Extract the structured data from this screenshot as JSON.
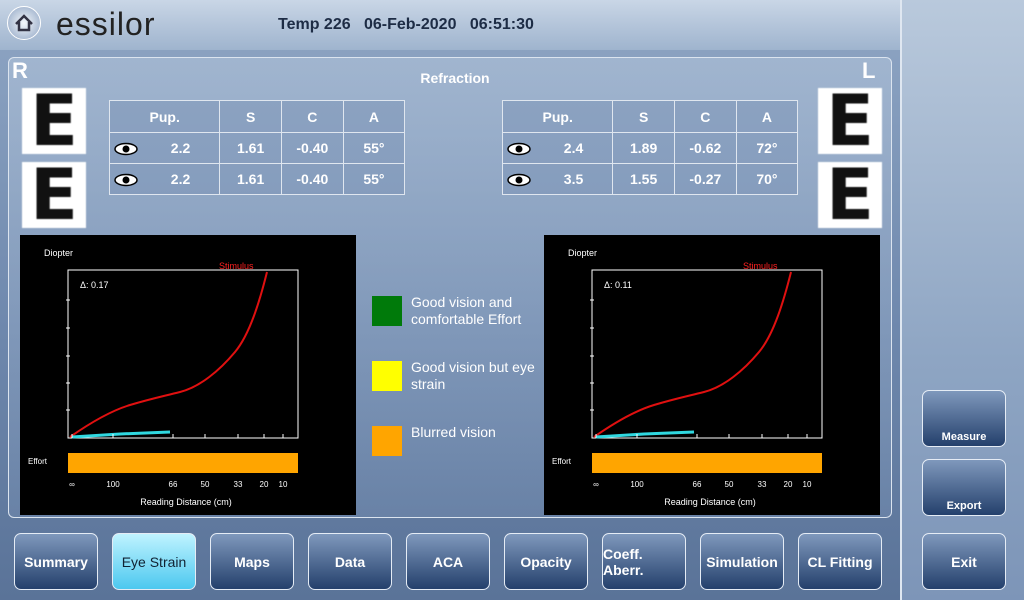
{
  "header": {
    "brand": "essilor",
    "patient": "Temp 226",
    "date": "06-Feb-2020",
    "time": "06:51:30"
  },
  "panel": {
    "title": "Refraction",
    "right_eye": "R",
    "left_eye": "L"
  },
  "tables": [
    {
      "columns": [
        "Pup.",
        "S",
        "C",
        "A"
      ],
      "rows": [
        [
          "2.2",
          "1.61",
          "-0.40",
          "55°"
        ],
        [
          "2.2",
          "1.61",
          "-0.40",
          "55°"
        ]
      ]
    },
    {
      "columns": [
        "Pup.",
        "S",
        "C",
        "A"
      ],
      "rows": [
        [
          "2.4",
          "1.89",
          "-0.62",
          "72°"
        ],
        [
          "3.5",
          "1.55",
          "-0.27",
          "70°"
        ]
      ]
    }
  ],
  "charts": [
    {
      "y_label": "Diopter",
      "stimulus": "Stimulus",
      "delta": "Δ: 0.17",
      "effort": "Effort",
      "x_label": "Reading Distance (cm)",
      "xticks": [
        "∞",
        "100",
        "66",
        "50",
        "33",
        "20",
        "10"
      ]
    },
    {
      "y_label": "Diopter",
      "stimulus": "Stimulus",
      "delta": "Δ: 0.11",
      "effort": "Effort",
      "x_label": "Reading Distance (cm)",
      "xticks": [
        "∞",
        "100",
        "66",
        "50",
        "33",
        "20",
        "10"
      ]
    }
  ],
  "legend": [
    {
      "label": "Good vision and comfortable Effort",
      "color": "#007a0a"
    },
    {
      "label": "Good vision but eye strain",
      "color": "#ffff00"
    },
    {
      "label": "Blurred vision",
      "color": "#ffa500"
    }
  ],
  "tabs": [
    "Summary",
    "Eye Strain",
    "Maps",
    "Data",
    "ACA",
    "Opacity",
    "Coeff. Aberr.",
    "Simulation",
    "CL Fitting"
  ],
  "active_tab": 1,
  "side_buttons": {
    "measure": "Measure",
    "export": "Export",
    "exit": "Exit"
  }
}
